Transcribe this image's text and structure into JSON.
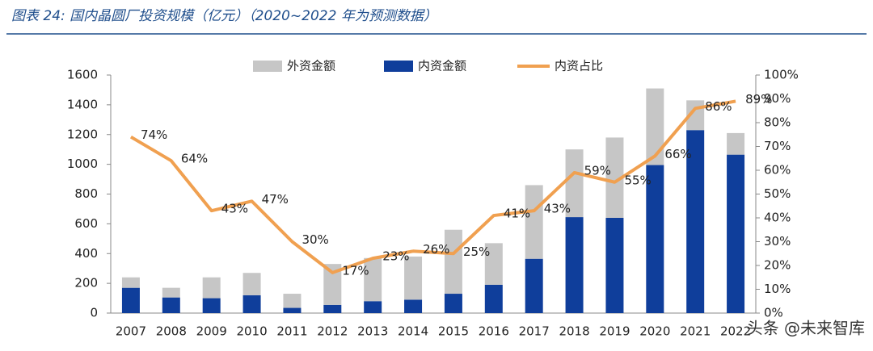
{
  "chart_data": {
    "type": "bar",
    "title": "图表 24:  国内晶圆厂投资规模（亿元）（2020~2022 年为预测数据）",
    "categories": [
      "2007",
      "2008",
      "2009",
      "2010",
      "2011",
      "2012",
      "2013",
      "2014",
      "2015",
      "2016",
      "2017",
      "2018",
      "2019",
      "2020",
      "2021",
      "2022"
    ],
    "series": [
      {
        "name": "外资金额",
        "color": "#c6c6c6",
        "values": [
          70,
          65,
          140,
          150,
          95,
          275,
          290,
          290,
          430,
          280,
          495,
          455,
          540,
          515,
          200,
          145
        ]
      },
      {
        "name": "内资金额",
        "color": "#0f3e9b",
        "values": [
          170,
          105,
          100,
          120,
          35,
          55,
          80,
          90,
          130,
          190,
          365,
          645,
          640,
          995,
          1230,
          1065
        ]
      },
      {
        "name": "内资占比",
        "color": "#f0a050",
        "type": "line",
        "axis": "y2",
        "values": [
          74,
          64,
          43,
          47,
          30,
          17,
          23,
          26,
          25,
          41,
          43,
          59,
          55,
          66,
          86,
          89
        ],
        "value_labels": [
          "74%",
          "64%",
          "43%",
          "47%",
          "30%",
          "17%",
          "23%",
          "26%",
          "25%",
          "41%",
          "43%",
          "59%",
          "55%",
          "66%",
          "86%",
          "89%"
        ]
      }
    ],
    "ylim": [
      0,
      1600
    ],
    "yticks": [
      0,
      200,
      400,
      600,
      800,
      1000,
      1200,
      1400,
      1600
    ],
    "y2lim": [
      0,
      100
    ],
    "y2ticks": [
      {
        "value": 0,
        "label": "0%"
      },
      {
        "value": 10,
        "label": "10%"
      },
      {
        "value": 20,
        "label": "20%"
      },
      {
        "value": 30,
        "label": "30%"
      },
      {
        "value": 40,
        "label": "40%"
      },
      {
        "value": 50,
        "label": "50%"
      },
      {
        "value": 60,
        "label": "60%"
      },
      {
        "value": 70,
        "label": "70%"
      },
      {
        "value": 80,
        "label": "80%"
      },
      {
        "value": 90,
        "label": "90%"
      },
      {
        "value": 100,
        "label": "100%"
      }
    ],
    "watermark": "头条 @未来智库"
  }
}
